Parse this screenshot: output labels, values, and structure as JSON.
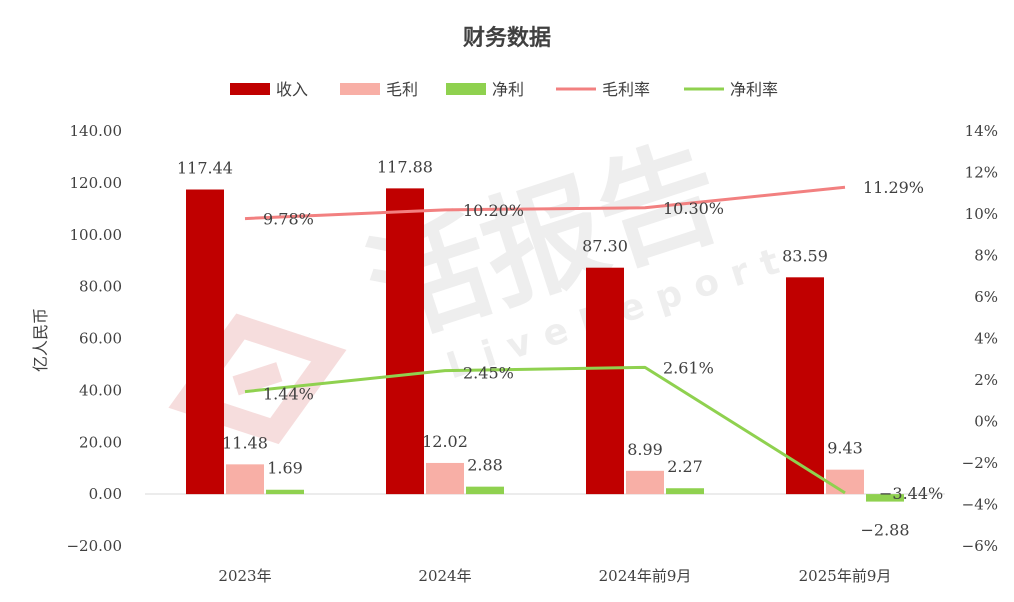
{
  "chart_data": {
    "type": "bar",
    "title": "财务数据",
    "ylabel": "亿人民币",
    "categories": [
      "2023年",
      "2024年",
      "2024年前9月",
      "2025年前9月"
    ],
    "y_ticks": [
      "140.00",
      "120.00",
      "100.00",
      "80.00",
      "60.00",
      "40.00",
      "20.00",
      "0.00",
      "−20.00"
    ],
    "y2_ticks": [
      "14%",
      "12%",
      "10%",
      "8%",
      "6%",
      "4%",
      "2%",
      "0%",
      "−2%",
      "−4%",
      "−6%"
    ],
    "ylim": [
      -20,
      140
    ],
    "y2lim": [
      -6,
      14
    ],
    "legend_position": "top",
    "grid": false,
    "series": [
      {
        "name": "收入",
        "kind": "bar",
        "axis": "left",
        "color": "#C00000",
        "values": [
          117.44,
          117.88,
          87.3,
          83.59
        ],
        "labels": [
          "117.44",
          "117.88",
          "87.30",
          "83.59"
        ]
      },
      {
        "name": "毛利",
        "kind": "bar",
        "axis": "left",
        "color": "#F8AFA6",
        "values": [
          11.48,
          12.02,
          8.99,
          9.43
        ],
        "labels": [
          "11.48",
          "12.02",
          "8.99",
          "9.43"
        ]
      },
      {
        "name": "净利",
        "kind": "bar",
        "axis": "left",
        "color": "#8FD14F",
        "values": [
          1.69,
          2.88,
          2.27,
          -2.88
        ],
        "labels": [
          "1.69",
          "2.88",
          "2.27",
          "−2.88"
        ]
      },
      {
        "name": "毛利率",
        "kind": "line",
        "axis": "right",
        "color": "#F28080",
        "label_color": "#E8191F",
        "values": [
          9.78,
          10.2,
          10.3,
          11.29
        ],
        "labels": [
          "9.78%",
          "10.20%",
          "10.30%",
          "11.29%"
        ]
      },
      {
        "name": "净利率",
        "kind": "line",
        "axis": "right",
        "color": "#8FD14F",
        "label_color": "#22B14C",
        "values": [
          1.44,
          2.45,
          2.61,
          -3.44
        ],
        "labels": [
          "1.44%",
          "2.45%",
          "2.61%",
          "−3.44%"
        ]
      }
    ]
  },
  "watermark": {
    "brand": "活报告",
    "sub": "LiveReport"
  }
}
